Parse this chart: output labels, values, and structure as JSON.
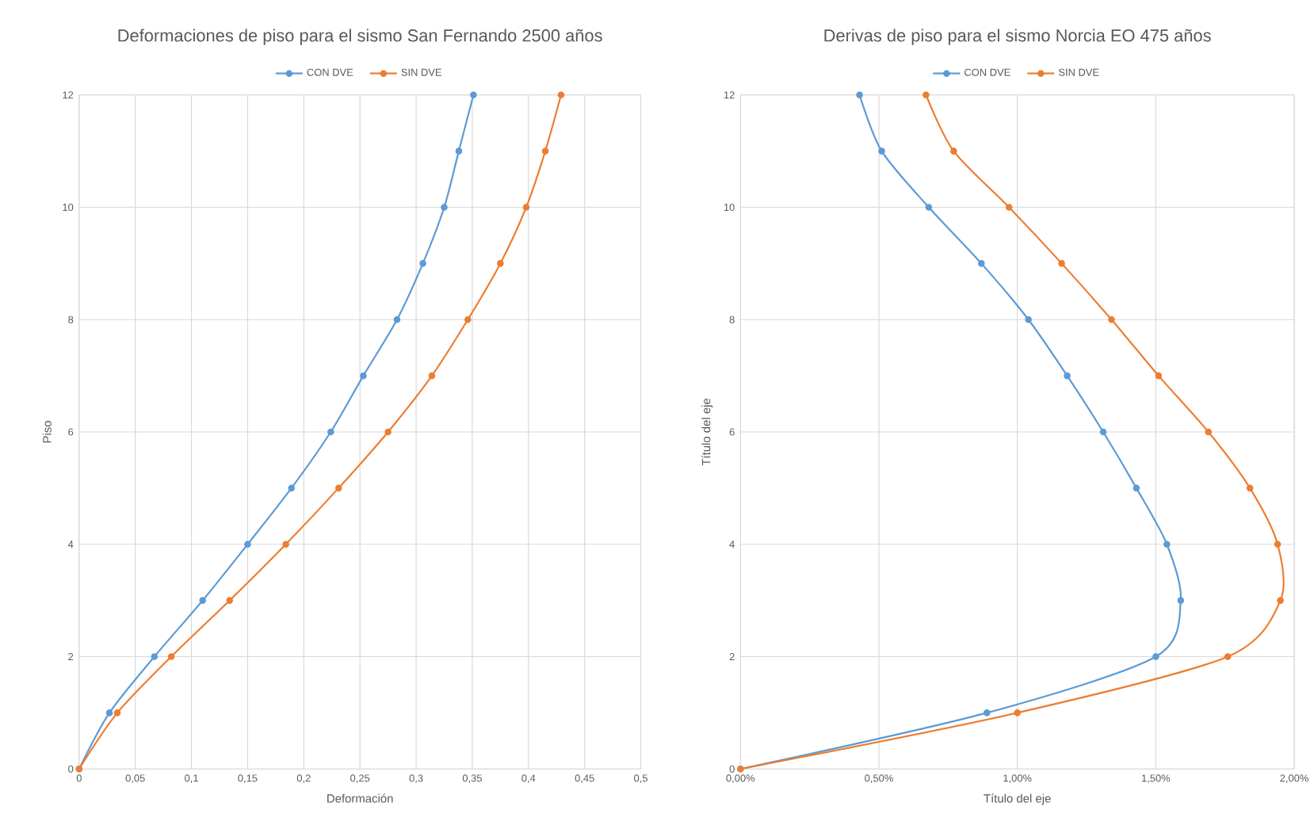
{
  "chart_data": [
    {
      "type": "line",
      "title": "Deformaciones de piso para el sismo San Fernando 2500 años",
      "xlabel": "Deformación",
      "ylabel": "Piso",
      "series": [
        {
          "name": "CON DVE",
          "color": "#5b9bd5",
          "x": [
            0,
            0.027,
            0.067,
            0.11,
            0.15,
            0.189,
            0.224,
            0.253,
            0.283,
            0.306,
            0.325,
            0.338,
            0.351
          ],
          "values": [
            0,
            1,
            2,
            3,
            4,
            5,
            6,
            7,
            8,
            9,
            10,
            11,
            12
          ]
        },
        {
          "name": "SIN DVE",
          "color": "#ed7d31",
          "x": [
            0,
            0.034,
            0.082,
            0.134,
            0.184,
            0.231,
            0.275,
            0.314,
            0.346,
            0.375,
            0.398,
            0.415,
            0.429
          ],
          "values": [
            0,
            1,
            2,
            3,
            4,
            5,
            6,
            7,
            8,
            9,
            10,
            11,
            12
          ]
        }
      ],
      "xlim": [
        0,
        0.5
      ],
      "xticks": [
        0,
        {
          "value": 0.05,
          "label": "0,05"
        },
        {
          "value": 0.1,
          "label": "0,1"
        },
        {
          "value": 0.15,
          "label": "0,15"
        },
        {
          "value": 0.2,
          "label": "0,2"
        },
        {
          "value": 0.25,
          "label": "0,25"
        },
        {
          "value": 0.3,
          "label": "0,3"
        },
        {
          "value": 0.35,
          "label": "0,35"
        },
        {
          "value": 0.4,
          "label": "0,4"
        },
        {
          "value": 0.45,
          "label": "0,45"
        },
        {
          "value": 0.5,
          "label": "0,5"
        }
      ],
      "ylim": [
        0,
        12
      ],
      "yticks": [
        0,
        2,
        4,
        6,
        8,
        10,
        12
      ],
      "grid": true,
      "legend": "top",
      "marker": "circle",
      "line_style": "solid"
    },
    {
      "type": "line",
      "title": "Derivas de piso para el sismo Norcia EO 475 años",
      "xlabel": "Título del eje",
      "ylabel": "Título del eje",
      "series": [
        {
          "name": "CON DVE",
          "color": "#5b9bd5",
          "x": [
            0,
            0.0089,
            0.015,
            0.0159,
            0.0154,
            0.0143,
            0.0131,
            0.0118,
            0.0104,
            0.0087,
            0.0068,
            0.0051,
            0.0043
          ],
          "values": [
            0,
            1,
            2,
            3,
            4,
            5,
            6,
            7,
            8,
            9,
            10,
            11,
            12
          ]
        },
        {
          "name": "SIN DVE",
          "color": "#ed7d31",
          "x": [
            0,
            0.01,
            0.0176,
            0.0195,
            0.0194,
            0.0184,
            0.0169,
            0.0151,
            0.0134,
            0.0116,
            0.0097,
            0.0077,
            0.0067
          ],
          "values": [
            0,
            1,
            2,
            3,
            4,
            5,
            6,
            7,
            8,
            9,
            10,
            11,
            12
          ]
        }
      ],
      "xlim": [
        0,
        0.02
      ],
      "xticks": [
        {
          "value": 0,
          "label": "0,00%"
        },
        {
          "value": 0.005,
          "label": "0,50%"
        },
        {
          "value": 0.01,
          "label": "1,00%"
        },
        {
          "value": 0.015,
          "label": "1,50%"
        },
        {
          "value": 0.02,
          "label": "2,00%"
        }
      ],
      "ylim": [
        0,
        12
      ],
      "yticks": [
        0,
        2,
        4,
        6,
        8,
        10,
        12
      ],
      "grid": true,
      "legend": "top",
      "marker": "circle",
      "line_style": "solid"
    }
  ]
}
